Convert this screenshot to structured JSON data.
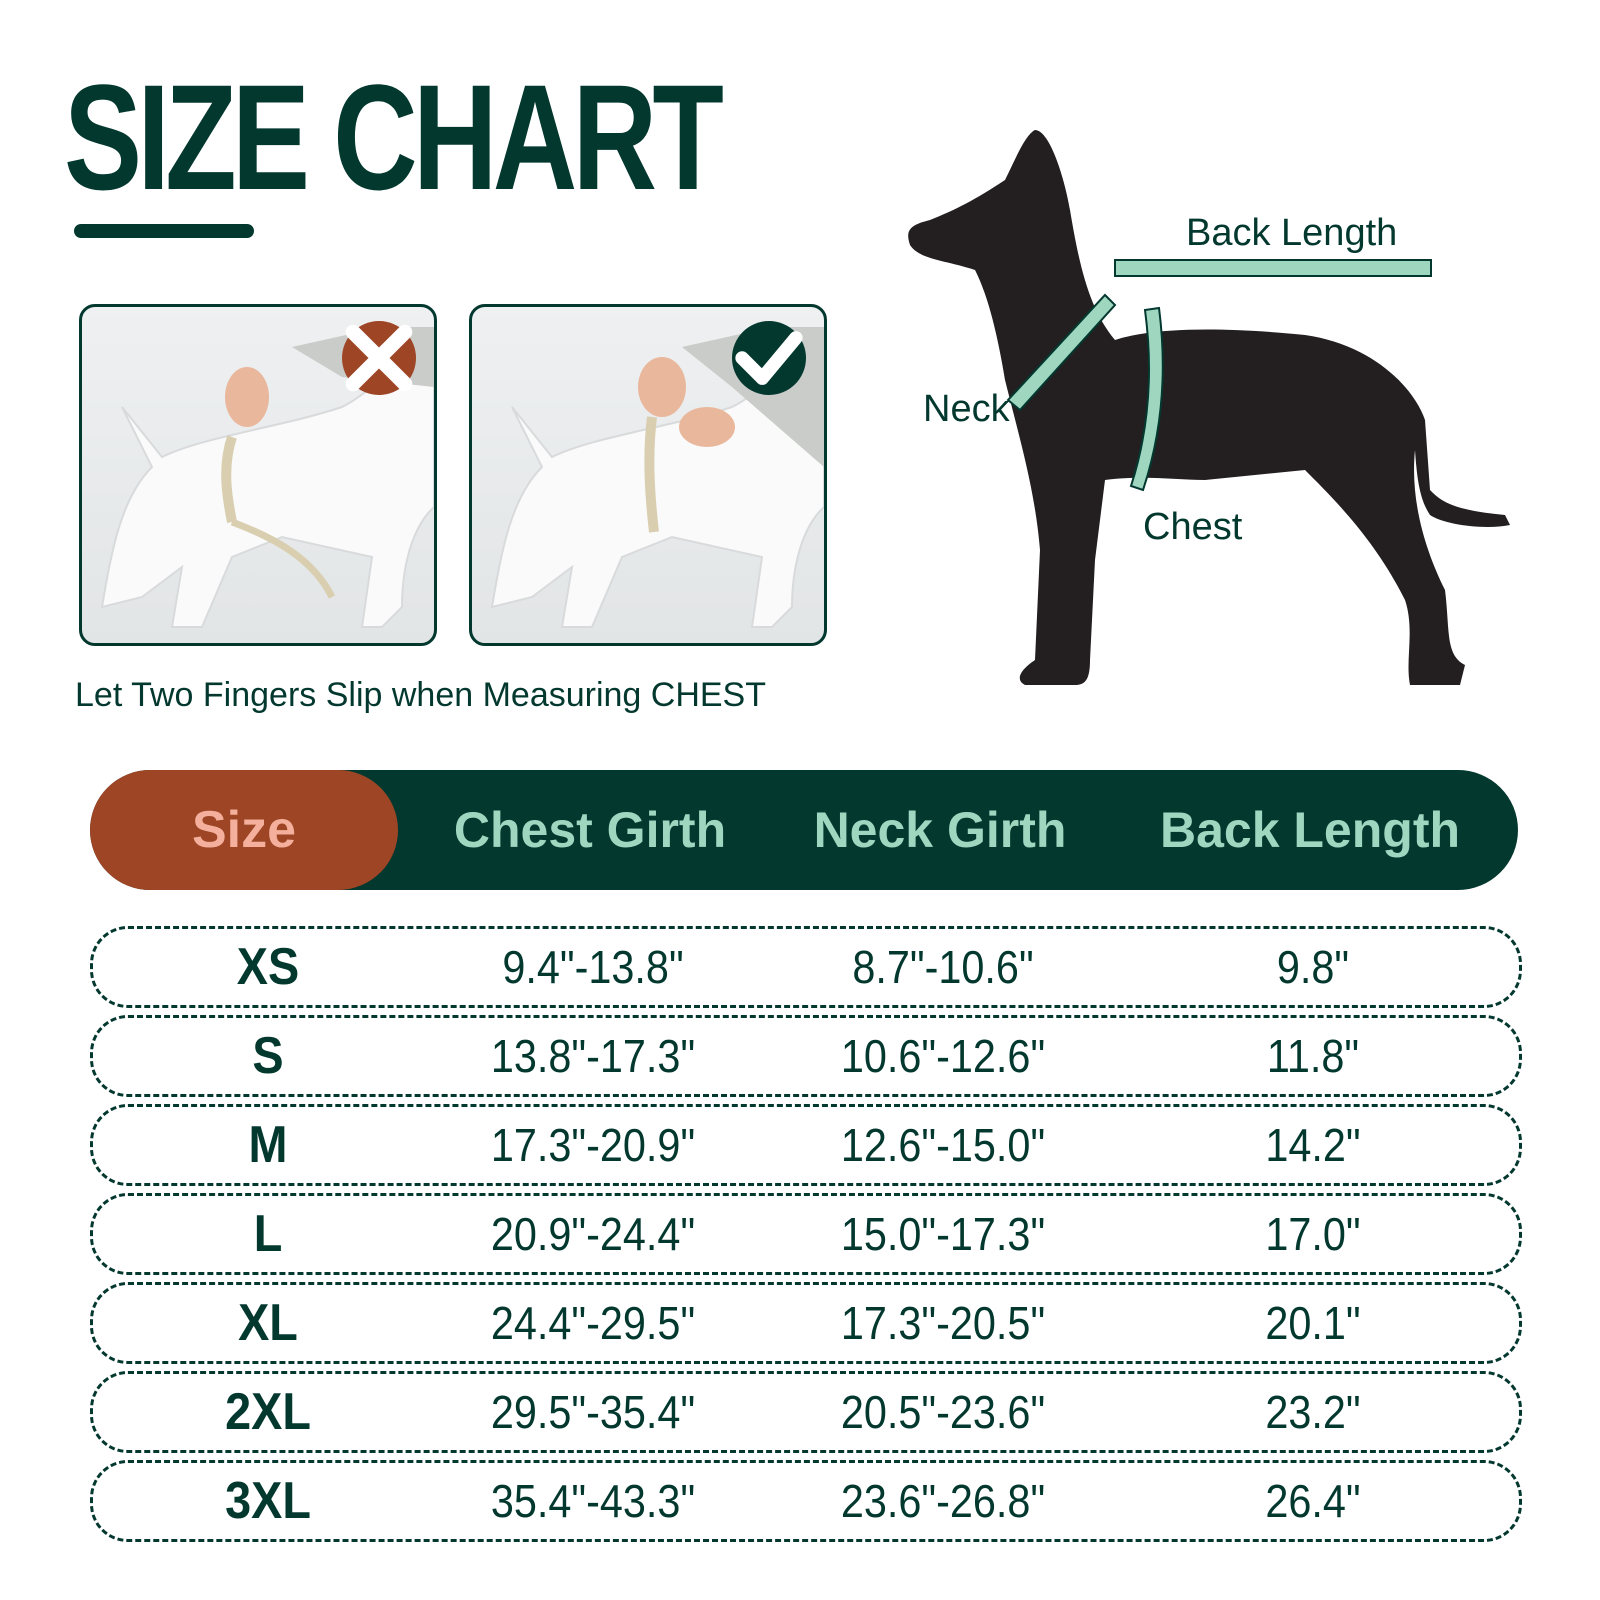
{
  "title": "SIZE CHART",
  "caption": "Let Two Fingers Slip when Measuring CHEST",
  "photos": [
    {
      "status": "incorrect",
      "icon": "x-icon",
      "badge_color": "#9d4525"
    },
    {
      "status": "correct",
      "icon": "check-icon",
      "badge_color": "#03382f"
    }
  ],
  "diagram": {
    "back_length": "Back Length",
    "neck": "Neck",
    "chest": "Chest",
    "tape_color": "#9fd6c0",
    "dog_color": "#231f20"
  },
  "colors": {
    "primary": "#03382f",
    "accent": "#9d4525",
    "header_text": "#9fd6c0",
    "size_text": "#f4b09c"
  },
  "table": {
    "headers": [
      "Size",
      "Chest Girth",
      "Neck Girth",
      "Back Length"
    ],
    "rows": [
      [
        "XS",
        "9.4\"-13.8\"",
        "8.7\"-10.6\"",
        "9.8\""
      ],
      [
        "S",
        "13.8\"-17.3\"",
        "10.6\"-12.6\"",
        "11.8\""
      ],
      [
        "M",
        "17.3\"-20.9\"",
        "12.6\"-15.0\"",
        "14.2\""
      ],
      [
        "L",
        "20.9\"-24.4\"",
        "15.0\"-17.3\"",
        "17.0\""
      ],
      [
        "XL",
        "24.4\"-29.5\"",
        "17.3\"-20.5\"",
        "20.1\""
      ],
      [
        "2XL",
        "29.5\"-35.4\"",
        "20.5\"-23.6\"",
        "23.2\""
      ],
      [
        "3XL",
        "35.4\"-43.3\"",
        "23.6\"-26.8\"",
        "26.4\""
      ]
    ]
  }
}
